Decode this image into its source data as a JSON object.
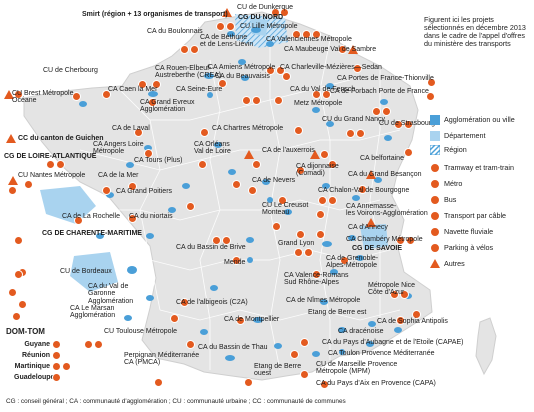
{
  "note": "Figurent ici les projets sélectionnés en décembre 2013 dans le cadre de l'appel d'offres du ministère des transports",
  "colors": {
    "agglomeration": "#4a9fd8",
    "departement": "#a9d3ef",
    "region_hatch": "#4a9fd8",
    "project_icon": "#e35a1f",
    "france_fill": "#e5e5e5",
    "france_border": "#ffffff"
  },
  "legend": [
    {
      "key": "agglomeration",
      "label": "Agglomération ou ville",
      "icon": "blue-square-icon"
    },
    {
      "key": "departement",
      "label": "Département",
      "icon": "light-blue-square-icon"
    },
    {
      "key": "region",
      "label": "Région",
      "icon": "hatched-square-icon"
    },
    {
      "key": "tram",
      "label": "Tramway et tram-train",
      "icon": "tram-icon"
    },
    {
      "key": "metro",
      "label": "Métro",
      "icon": "metro-icon"
    },
    {
      "key": "bus",
      "label": "Bus",
      "icon": "bus-icon"
    },
    {
      "key": "cable",
      "label": "Transport par câble",
      "icon": "cable-car-icon"
    },
    {
      "key": "navette",
      "label": "Navette fluviale",
      "icon": "boat-icon"
    },
    {
      "key": "velo",
      "label": "Parking à vélos",
      "icon": "bicycle-icon"
    },
    {
      "key": "autres",
      "label": "Autres",
      "icon": "warning-icon"
    }
  ],
  "labels": [
    {
      "id": "smirt",
      "text": "Smirt (région + 13 organismes de transport)",
      "bold": true
    },
    {
      "id": "dunkerque",
      "text": "CU de Dunkerque"
    },
    {
      "id": "cg-nord",
      "text": "CG DU NORD",
      "bold": true
    },
    {
      "id": "lille",
      "text": "CU Lille Métropole"
    },
    {
      "id": "boulonnais",
      "text": "CA du Boulonnais"
    },
    {
      "id": "bethune",
      "text": "CA de Béthune\net de Lens-Liévin"
    },
    {
      "id": "valenciennes",
      "text": "CA Valenciennes Métropole"
    },
    {
      "id": "maubeuge",
      "text": "CA Maubeuge Val de Sambre"
    },
    {
      "id": "cherbourg",
      "text": "CU de Cherbourg"
    },
    {
      "id": "rouen",
      "text": "CA Rouen-Elbeuf-\nAustreberthe (CREA)"
    },
    {
      "id": "amiens",
      "text": "CA Amiens Métropole"
    },
    {
      "id": "beauvaisis",
      "text": "CA du Beauvaisis"
    },
    {
      "id": "charleville",
      "text": "CA Charleville-Mézières—Sedan"
    },
    {
      "id": "portes-france",
      "text": "CA Portes de France-Thionville"
    },
    {
      "id": "forbach",
      "text": "CA de Forbach Porte de France"
    },
    {
      "id": "brest",
      "text": "CU Brest Métropole\nOcéane"
    },
    {
      "id": "caen",
      "text": "CA Caen la Mer"
    },
    {
      "id": "seine-eure",
      "text": "CA Seine-Eure"
    },
    {
      "id": "fensch",
      "text": "CA du Val de Fensch"
    },
    {
      "id": "evreux",
      "text": "CA Grand Evreux\nAgglomération"
    },
    {
      "id": "metz",
      "text": "Metz Métropole"
    },
    {
      "id": "nancy",
      "text": "CU du Grand Nancy"
    },
    {
      "id": "strasbourg",
      "text": "CU de Strasbourg"
    },
    {
      "id": "laval",
      "text": "CA de Laval"
    },
    {
      "id": "chartres",
      "text": "CA Chartres Métropole"
    },
    {
      "id": "guichen",
      "text": "CC du canton de Guichen",
      "bold": true
    },
    {
      "id": "angers",
      "text": "CA Angers Loire\nMétropole"
    },
    {
      "id": "orleans",
      "text": "CA Orléans\nVal de Loire"
    },
    {
      "id": "auxerrois",
      "text": "CA de l'auxerrois"
    },
    {
      "id": "cg-loire-atl",
      "text": "CG DE LOIRE-ATLANTIQUE",
      "bold": true
    },
    {
      "id": "tours",
      "text": "CA Tours (Plus)"
    },
    {
      "id": "dijon",
      "text": "CA dijonnaise\n(Comadi)"
    },
    {
      "id": "belfortaine",
      "text": "CA belfortaine"
    },
    {
      "id": "nantes",
      "text": "CU Nantes Métropole"
    },
    {
      "id": "mer",
      "text": "CA de la Mer"
    },
    {
      "id": "nevers",
      "text": "CA de Nevers"
    },
    {
      "id": "besancon",
      "text": "CA du Grand Besançon"
    },
    {
      "id": "poitiers",
      "text": "CA Grand Poitiers"
    },
    {
      "id": "chalon",
      "text": "CA Chalon-Val de Bourgogne"
    },
    {
      "id": "rochelle",
      "text": "CA de La Rochelle"
    },
    {
      "id": "niortais",
      "text": "CA du niortais"
    },
    {
      "id": "creusot",
      "text": "CU Le Creusot\nMonteau"
    },
    {
      "id": "annemasse",
      "text": "CA Annemasse-\nles Voirons-Agglomération"
    },
    {
      "id": "cg-charente",
      "text": "CG DE CHARENTE-MARITIME",
      "bold": true
    },
    {
      "id": "annecy",
      "text": "CA d'Annecy"
    },
    {
      "id": "brive",
      "text": "CA du Bassin de Brive"
    },
    {
      "id": "chambery",
      "text": "CA Chambéry Métropole"
    },
    {
      "id": "cg-savoie",
      "text": "CG DE SAVOIE",
      "bold": true
    },
    {
      "id": "lyon",
      "text": "Grand Lyon"
    },
    {
      "id": "grenoble",
      "text": "CA de Grenoble-\nAlpes-Métropole"
    },
    {
      "id": "bordeaux",
      "text": "CU de Bordeaux"
    },
    {
      "id": "mende",
      "text": "Mende"
    },
    {
      "id": "valence",
      "text": "CA Valence-Romans\nSud Rhône-Alpes"
    },
    {
      "id": "garonne",
      "text": "CA du Val de\nGaronne\nAgglomération"
    },
    {
      "id": "albigeois",
      "text": "CA de l'albigeois (C2A)"
    },
    {
      "id": "nimes",
      "text": "CA de Nîmes Métropole"
    },
    {
      "id": "nice",
      "text": "Métropole Nice\nCôte d'Azur"
    },
    {
      "id": "marsan",
      "text": "CA Le Marsan\nAgglomération"
    },
    {
      "id": "montpellier",
      "text": "CA de Montpellier"
    },
    {
      "id": "berre-est",
      "text": "Etang de Berre est"
    },
    {
      "id": "antipolis",
      "text": "CA de Sophia Antipolis"
    },
    {
      "id": "toulouse",
      "text": "CU Toulouse Métropole"
    },
    {
      "id": "draceinoise",
      "text": "CA dracénoise"
    },
    {
      "id": "thau",
      "text": "CA du Bassin de Thau"
    },
    {
      "id": "aubagne",
      "text": "CA du Pays d'Aubagne et de l'Etoile (CAPAE)"
    },
    {
      "id": "toulon",
      "text": "CA Toulon Provence Méditerranée"
    },
    {
      "id": "perpignan",
      "text": "Perpignan Méditerranée\nCA (PMCA)"
    },
    {
      "id": "berre-ouest",
      "text": "Etang de Berre\nouest"
    },
    {
      "id": "marseille",
      "text": "CU de Marseille Provence\nMétropole (MPM)"
    },
    {
      "id": "aix",
      "text": "CA du Pays d'Aix en Provence (CAPA)"
    }
  ],
  "domtom": {
    "title": "DOM-TOM",
    "items": [
      "Guyane",
      "Réunion",
      "Martinique",
      "Guadeloupe"
    ]
  },
  "footer": "CG : conseil général ; CA : communauté d'agglomération ; CU : communauté urbaine ; CC : communauté de communes"
}
